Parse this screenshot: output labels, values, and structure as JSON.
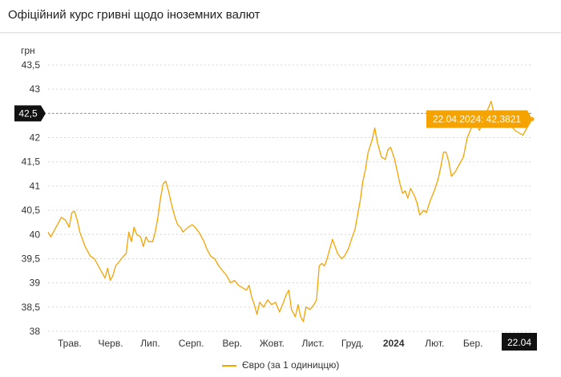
{
  "header": {
    "title": "Офіційний курс гривні щодо іноземних валют"
  },
  "chart_data": {
    "type": "line",
    "ylabel": "грн",
    "ylim": [
      38,
      43.5
    ],
    "y_ticks": [
      "43,5",
      "43",
      "42,5",
      "42",
      "41,5",
      "41",
      "40,5",
      "40",
      "39,5",
      "39",
      "38,5",
      "38"
    ],
    "y_tick_values": [
      43.5,
      43,
      42.5,
      42,
      41.5,
      41,
      40.5,
      40,
      39.5,
      39,
      38.5,
      38
    ],
    "x_ticks": [
      "Трав.",
      "Черв.",
      "Лип.",
      "Серп.",
      "Вер.",
      "Жовт.",
      "Лист.",
      "Груд.",
      "2024",
      "Лют.",
      "Бер."
    ],
    "x_tick_dates": [
      "2023-05-01",
      "2023-06-01",
      "2023-07-01",
      "2023-08-01",
      "2023-09-01",
      "2023-10-01",
      "2023-11-01",
      "2023-12-01",
      "2024-01-01",
      "2024-02-01",
      "2024-03-01"
    ],
    "xlim": [
      "2023-04-22",
      "2024-04-22"
    ],
    "highlight": {
      "y_label": "42,5",
      "y_value": 42.5,
      "x_label": "22.04",
      "tooltip": "22.04.2024: 42,3821",
      "date": "2024-04-22",
      "value": 42.3821
    },
    "grid": "horizontal dashed",
    "legend_position": "bottom-center",
    "series": [
      {
        "name": "Євро (за 1 одиниццю)",
        "color": "#f5a300",
        "points": [
          [
            "2023-04-22",
            40.05
          ],
          [
            "2023-04-24",
            39.95
          ],
          [
            "2023-04-27",
            40.1
          ],
          [
            "2023-04-30",
            40.25
          ],
          [
            "2023-05-02",
            40.35
          ],
          [
            "2023-05-05",
            40.3
          ],
          [
            "2023-05-08",
            40.15
          ],
          [
            "2023-05-10",
            40.45
          ],
          [
            "2023-05-12",
            40.48
          ],
          [
            "2023-05-14",
            40.3
          ],
          [
            "2023-05-16",
            40.05
          ],
          [
            "2023-05-18",
            39.9
          ],
          [
            "2023-05-20",
            39.75
          ],
          [
            "2023-05-22",
            39.65
          ],
          [
            "2023-05-24",
            39.55
          ],
          [
            "2023-05-27",
            39.5
          ],
          [
            "2023-05-30",
            39.35
          ],
          [
            "2023-06-02",
            39.2
          ],
          [
            "2023-06-04",
            39.1
          ],
          [
            "2023-06-06",
            39.3
          ],
          [
            "2023-06-08",
            39.05
          ],
          [
            "2023-06-10",
            39.15
          ],
          [
            "2023-06-12",
            39.35
          ],
          [
            "2023-06-15",
            39.45
          ],
          [
            "2023-06-18",
            39.55
          ],
          [
            "2023-06-20",
            39.6
          ],
          [
            "2023-06-22",
            40.05
          ],
          [
            "2023-06-24",
            39.85
          ],
          [
            "2023-06-26",
            40.15
          ],
          [
            "2023-06-28",
            40.0
          ],
          [
            "2023-07-01",
            39.95
          ],
          [
            "2023-07-03",
            39.75
          ],
          [
            "2023-07-05",
            39.95
          ],
          [
            "2023-07-07",
            39.85
          ],
          [
            "2023-07-10",
            39.85
          ],
          [
            "2023-07-12",
            40.05
          ],
          [
            "2023-07-14",
            40.35
          ],
          [
            "2023-07-16",
            40.75
          ],
          [
            "2023-07-18",
            41.05
          ],
          [
            "2023-07-20",
            41.1
          ],
          [
            "2023-07-22",
            40.9
          ],
          [
            "2023-07-25",
            40.55
          ],
          [
            "2023-07-27",
            40.35
          ],
          [
            "2023-07-29",
            40.2
          ],
          [
            "2023-07-31",
            40.15
          ],
          [
            "2023-08-02",
            40.05
          ],
          [
            "2023-08-04",
            40.1
          ],
          [
            "2023-08-06",
            40.15
          ],
          [
            "2023-08-09",
            40.2
          ],
          [
            "2023-08-11",
            40.15
          ],
          [
            "2023-08-14",
            40.05
          ],
          [
            "2023-08-16",
            39.95
          ],
          [
            "2023-08-18",
            39.85
          ],
          [
            "2023-08-20",
            39.7
          ],
          [
            "2023-08-23",
            39.55
          ],
          [
            "2023-08-26",
            39.5
          ],
          [
            "2023-08-29",
            39.35
          ],
          [
            "2023-09-01",
            39.25
          ],
          [
            "2023-09-04",
            39.15
          ],
          [
            "2023-09-07",
            39.0
          ],
          [
            "2023-09-10",
            39.05
          ],
          [
            "2023-09-13",
            38.95
          ],
          [
            "2023-09-16",
            38.9
          ],
          [
            "2023-09-19",
            38.85
          ],
          [
            "2023-09-21",
            38.95
          ],
          [
            "2023-09-23",
            38.7
          ],
          [
            "2023-09-25",
            38.55
          ],
          [
            "2023-09-27",
            38.35
          ],
          [
            "2023-09-29",
            38.6
          ],
          [
            "2023-10-02",
            38.5
          ],
          [
            "2023-10-05",
            38.65
          ],
          [
            "2023-10-08",
            38.55
          ],
          [
            "2023-10-11",
            38.6
          ],
          [
            "2023-10-14",
            38.4
          ],
          [
            "2023-10-17",
            38.6
          ],
          [
            "2023-10-19",
            38.75
          ],
          [
            "2023-10-21",
            38.85
          ],
          [
            "2023-10-23",
            38.45
          ],
          [
            "2023-10-26",
            38.3
          ],
          [
            "2023-10-28",
            38.55
          ],
          [
            "2023-10-30",
            38.3
          ],
          [
            "2023-11-01",
            38.2
          ],
          [
            "2023-11-03",
            38.5
          ],
          [
            "2023-11-06",
            38.45
          ],
          [
            "2023-11-09",
            38.55
          ],
          [
            "2023-11-11",
            38.65
          ],
          [
            "2023-11-13",
            39.35
          ],
          [
            "2023-11-15",
            39.4
          ],
          [
            "2023-11-17",
            39.35
          ],
          [
            "2023-11-19",
            39.5
          ],
          [
            "2023-11-21",
            39.7
          ],
          [
            "2023-11-23",
            39.9
          ],
          [
            "2023-11-25",
            39.75
          ],
          [
            "2023-11-27",
            39.6
          ],
          [
            "2023-11-30",
            39.5
          ],
          [
            "2023-12-02",
            39.55
          ],
          [
            "2023-12-05",
            39.7
          ],
          [
            "2023-12-08",
            39.95
          ],
          [
            "2023-12-10",
            40.1
          ],
          [
            "2023-12-12",
            40.4
          ],
          [
            "2023-12-14",
            40.7
          ],
          [
            "2023-12-16",
            41.1
          ],
          [
            "2023-12-18",
            41.35
          ],
          [
            "2023-12-20",
            41.7
          ],
          [
            "2023-12-23",
            41.95
          ],
          [
            "2023-12-25",
            42.2
          ],
          [
            "2023-12-27",
            41.9
          ],
          [
            "2023-12-30",
            41.6
          ],
          [
            "2024-01-02",
            41.55
          ],
          [
            "2024-01-04",
            41.75
          ],
          [
            "2024-01-06",
            41.8
          ],
          [
            "2024-01-09",
            41.55
          ],
          [
            "2024-01-11",
            41.3
          ],
          [
            "2024-01-13",
            41.05
          ],
          [
            "2024-01-15",
            40.85
          ],
          [
            "2024-01-17",
            40.9
          ],
          [
            "2024-01-19",
            40.75
          ],
          [
            "2024-01-21",
            40.95
          ],
          [
            "2024-01-24",
            40.8
          ],
          [
            "2024-01-26",
            40.65
          ],
          [
            "2024-01-28",
            40.4
          ],
          [
            "2024-01-31",
            40.5
          ],
          [
            "2024-02-02",
            40.45
          ],
          [
            "2024-02-05",
            40.7
          ],
          [
            "2024-02-08",
            40.9
          ],
          [
            "2024-02-11",
            41.15
          ],
          [
            "2024-02-13",
            41.4
          ],
          [
            "2024-02-15",
            41.7
          ],
          [
            "2024-02-17",
            41.7
          ],
          [
            "2024-02-19",
            41.5
          ],
          [
            "2024-02-21",
            41.2
          ],
          [
            "2024-02-24",
            41.3
          ],
          [
            "2024-02-27",
            41.45
          ],
          [
            "2024-03-01",
            41.6
          ],
          [
            "2024-03-04",
            42.0
          ],
          [
            "2024-03-07",
            42.2
          ],
          [
            "2024-03-10",
            42.35
          ],
          [
            "2024-03-13",
            42.15
          ],
          [
            "2024-03-16",
            42.3
          ],
          [
            "2024-03-19",
            42.55
          ],
          [
            "2024-03-22",
            42.75
          ],
          [
            "2024-03-25",
            42.4
          ],
          [
            "2024-03-28",
            42.3
          ],
          [
            "2024-03-31",
            42.45
          ],
          [
            "2024-04-03",
            42.2
          ],
          [
            "2024-04-06",
            42.25
          ],
          [
            "2024-04-09",
            42.15
          ],
          [
            "2024-04-12",
            42.1
          ],
          [
            "2024-04-15",
            42.05
          ],
          [
            "2024-04-18",
            42.2
          ],
          [
            "2024-04-22",
            42.3821
          ]
        ]
      }
    ]
  }
}
